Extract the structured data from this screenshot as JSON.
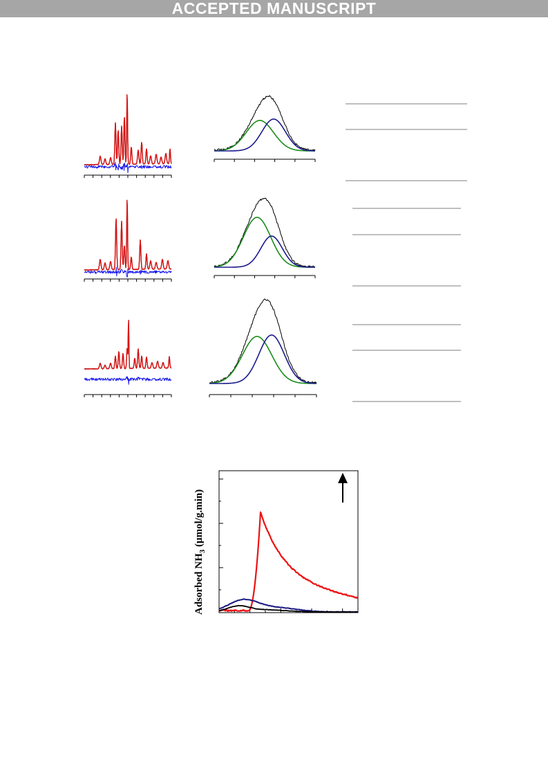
{
  "banner": {
    "text": "ACCEPTED MANUSCRIPT"
  },
  "colors": {
    "banner": "#a6a6a6",
    "observed": "#000000",
    "calculated": "#dd1111",
    "difference": "#1a1aee",
    "fit_green": "#1a8c1a",
    "fit_navy": "#1a1a8c",
    "nh3_red": "#ee1111",
    "nh3_navy": "#1a1a80",
    "nh3_black": "#000000"
  },
  "tpd_plot": {
    "ylabel_main": "Adsorbed NH",
    "ylabel_sub": "3",
    "ylabel_units": " (μmol/g.min)"
  },
  "chart_data": [
    {
      "type": "line",
      "panel": "xrd-refinement-1",
      "series": [
        {
          "name": "",
          "color": "#000000",
          "role": "observed"
        },
        {
          "name": "",
          "color": "#dd1111",
          "role": "calculated"
        },
        {
          "name": "",
          "color": "#1a1aee",
          "role": "difference"
        }
      ]
    },
    {
      "type": "line",
      "panel": "peak-fit-1",
      "series": [
        {
          "name": "",
          "color": "#000000"
        },
        {
          "name": "",
          "color": "#1a8c1a"
        },
        {
          "name": "",
          "color": "#1a1a8c"
        }
      ]
    },
    {
      "type": "line",
      "panel": "xrd-refinement-2",
      "series": [
        {
          "name": "",
          "color": "#000000"
        },
        {
          "name": "",
          "color": "#dd1111"
        },
        {
          "name": "",
          "color": "#1a1aee"
        }
      ]
    },
    {
      "type": "line",
      "panel": "peak-fit-2",
      "series": [
        {
          "name": "",
          "color": "#000000"
        },
        {
          "name": "",
          "color": "#1a8c1a"
        },
        {
          "name": "",
          "color": "#1a1a8c"
        }
      ]
    },
    {
      "type": "line",
      "panel": "xrd-refinement-3",
      "series": [
        {
          "name": "",
          "color": "#000000"
        },
        {
          "name": "",
          "color": "#dd1111"
        },
        {
          "name": "",
          "color": "#1a1aee"
        }
      ]
    },
    {
      "type": "line",
      "panel": "peak-fit-3",
      "series": [
        {
          "name": "",
          "color": "#000000"
        },
        {
          "name": "",
          "color": "#1a8c1a"
        },
        {
          "name": "",
          "color": "#1a1a8c"
        }
      ]
    },
    {
      "type": "line",
      "panel": "nh3-tpd",
      "ylabel": "Adsorbed NH3 (μmol/g.min)",
      "series": [
        {
          "name": "",
          "color": "#ee1111"
        },
        {
          "name": "",
          "color": "#1a1a80"
        },
        {
          "name": "",
          "color": "#000000"
        }
      ]
    }
  ]
}
